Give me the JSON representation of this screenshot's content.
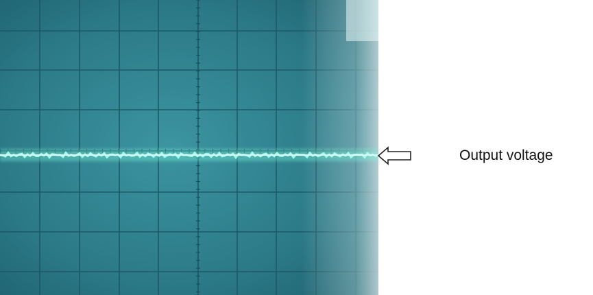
{
  "figure": {
    "caption": "Output voltage",
    "screen_color": "#2f7f8e",
    "grid_color": "#1f5968",
    "trace_color": "#8fffe8",
    "arrow_icon": "left-outline-arrow"
  }
}
